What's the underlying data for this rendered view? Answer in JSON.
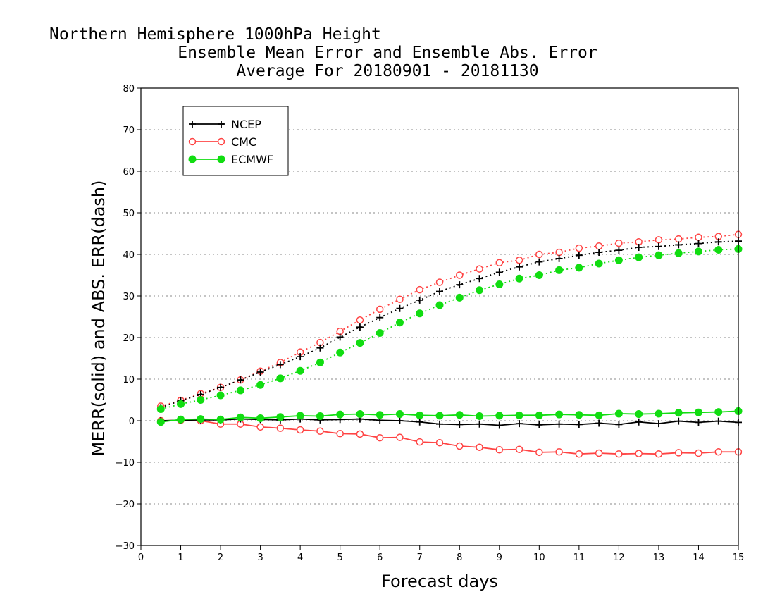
{
  "chart_data": {
    "type": "line",
    "title": [
      "Northern Hemisphere 1000hPa Height",
      "Ensemble Mean Error and Ensemble Abs. Error",
      "Average For 20180901 - 20181130"
    ],
    "xlabel": "Forecast days",
    "ylabel": "MERR(solid) and ABS. ERR(dash)",
    "xlim": [
      0,
      15
    ],
    "ylim": [
      -30,
      80
    ],
    "xticks": [
      0,
      1,
      2,
      3,
      4,
      5,
      6,
      7,
      8,
      9,
      10,
      11,
      12,
      13,
      14,
      15
    ],
    "yticks": [
      -30,
      -20,
      -10,
      0,
      10,
      20,
      30,
      40,
      50,
      60,
      70,
      80
    ],
    "grid": "horizontal dotted",
    "legend_position": "top-left",
    "x": [
      0.5,
      1,
      1.5,
      2,
      2.5,
      3,
      3.5,
      4,
      4.5,
      5,
      5.5,
      6,
      6.5,
      7,
      7.5,
      8,
      8.5,
      9,
      9.5,
      10,
      10.5,
      11,
      11.5,
      12,
      12.5,
      13,
      13.5,
      14,
      14.5,
      15
    ],
    "series": [
      {
        "name": "NCEP",
        "color": "#000000",
        "marker": "plus",
        "merr": [
          0,
          0.1,
          0.2,
          0.2,
          0.4,
          0.3,
          0.2,
          0.4,
          0.2,
          0.3,
          0.4,
          0.1,
          0,
          -0.3,
          -0.8,
          -0.9,
          -0.8,
          -1.1,
          -0.7,
          -1.0,
          -0.8,
          -0.9,
          -0.6,
          -0.9,
          -0.3,
          -0.7,
          -0.1,
          -0.4,
          -0.1,
          -0.4
        ],
        "abs_err": [
          3.2,
          4.8,
          6.3,
          8.0,
          9.8,
          11.7,
          13.5,
          15.4,
          17.5,
          20.1,
          22.5,
          24.8,
          27.0,
          29.0,
          31.1,
          32.7,
          34.2,
          35.7,
          37.0,
          38.2,
          39.0,
          39.8,
          40.5,
          41.0,
          41.7,
          41.9,
          42.3,
          42.6,
          43.0,
          43.2
        ]
      },
      {
        "name": "CMC",
        "color": "#ff4444",
        "marker": "open-circle",
        "merr": [
          0,
          0.1,
          0,
          -0.8,
          -0.8,
          -1.5,
          -1.8,
          -2.2,
          -2.5,
          -3.1,
          -3.2,
          -4.1,
          -4.0,
          -5.1,
          -5.3,
          -6.1,
          -6.4,
          -7.0,
          -6.9,
          -7.6,
          -7.5,
          -8.0,
          -7.8,
          -8.0,
          -7.9,
          -8.0,
          -7.7,
          -7.8,
          -7.5,
          -7.5
        ],
        "abs_err": [
          3.5,
          4.9,
          6.5,
          8.0,
          9.8,
          11.9,
          14.0,
          16.5,
          18.8,
          21.5,
          24.2,
          26.8,
          29.2,
          31.5,
          33.3,
          35.0,
          36.5,
          38.0,
          38.6,
          40.0,
          40.5,
          41.5,
          42.0,
          42.7,
          43.0,
          43.5,
          43.7,
          44.1,
          44.3,
          44.8
        ]
      },
      {
        "name": "ECMWF",
        "color": "#11dd11",
        "marker": "filled-circle",
        "merr": [
          -0.3,
          0.3,
          0.4,
          0.3,
          0.8,
          0.6,
          0.9,
          1.2,
          1.1,
          1.5,
          1.6,
          1.4,
          1.6,
          1.3,
          1.2,
          1.4,
          1.1,
          1.2,
          1.3,
          1.3,
          1.5,
          1.4,
          1.3,
          1.7,
          1.6,
          1.7,
          1.9,
          2.0,
          2.1,
          2.3
        ],
        "abs_err": [
          2.8,
          4.0,
          5.0,
          6.1,
          7.3,
          8.6,
          10.2,
          12.0,
          14.0,
          16.4,
          18.7,
          21.1,
          23.6,
          25.8,
          27.8,
          29.6,
          31.4,
          32.8,
          34.2,
          35.0,
          36.2,
          36.8,
          37.8,
          38.6,
          39.3,
          39.8,
          40.3,
          40.7,
          41.1,
          41.3
        ]
      }
    ]
  }
}
